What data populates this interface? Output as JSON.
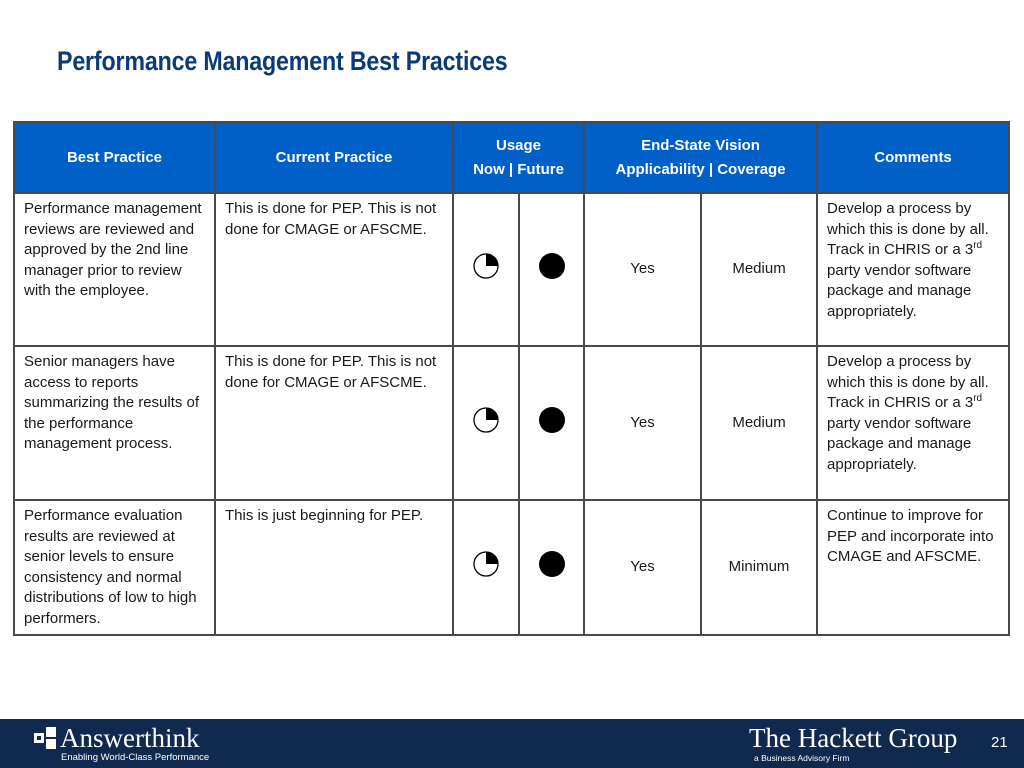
{
  "title": "Performance Management Best Practices",
  "table": {
    "headers": {
      "best_practice": "Best Practice",
      "current_practice": "Current Practice",
      "usage_line1": "Usage",
      "usage_line2": "Now | Future",
      "end_state_line1": "End-State Vision",
      "end_state_line2": "Applicability |  Coverage",
      "comments": "Comments"
    },
    "rows": [
      {
        "best_practice": "Performance management reviews are reviewed and approved by the 2nd line manager prior to review with the employee.",
        "current_practice": "This is done for PEP.  This is not done for CMAGE or AFSCME.",
        "usage_now_icon": "quarter-harvey-ball-icon",
        "usage_now_fill": 0.25,
        "usage_future_icon": "full-harvey-ball-icon",
        "usage_future_fill": 1.0,
        "applicability": "Yes",
        "coverage": "Medium",
        "comments_pre": "Develop a process by which this is done by all.  Track in CHRIS or a 3",
        "comments_sup": "rd",
        "comments_post": " party vendor software package and manage appropriately."
      },
      {
        "best_practice": "Senior managers have access to reports summarizing the results of the performance management process.",
        "current_practice": "This is done for PEP.  This is not done for CMAGE or AFSCME.",
        "usage_now_icon": "quarter-harvey-ball-icon",
        "usage_now_fill": 0.25,
        "usage_future_icon": "full-harvey-ball-icon",
        "usage_future_fill": 1.0,
        "applicability": "Yes",
        "coverage": "Medium",
        "comments_pre": "Develop a process by which this is done by all.  Track in CHRIS or a 3",
        "comments_sup": "rd",
        "comments_post": " party vendor software package and manage appropriately."
      },
      {
        "best_practice": "Performance evaluation results are reviewed at senior levels to ensure consistency and normal distributions of low to high performers.",
        "current_practice": "This is just beginning for PEP.",
        "usage_now_icon": "quarter-harvey-ball-icon",
        "usage_now_fill": 0.25,
        "usage_future_icon": "full-harvey-ball-icon",
        "usage_future_fill": 1.0,
        "applicability": "Yes",
        "coverage": "Minimum",
        "comments": "Continue to improve for PEP and incorporate into CMAGE and AFSCME."
      }
    ]
  },
  "footer": {
    "left_logo_name": "Answerthink",
    "left_logo_tagline": "Enabling World-Class Performance",
    "right_logo_name": "The Hackett Group",
    "right_logo_tagline": "a Business Advisory Firm",
    "page_number": "21",
    "background_color": "#0f2a4e"
  },
  "colors": {
    "title": "#0b3a78",
    "header_background": "#0060c8",
    "header_text": "#ffffff",
    "border": "#4a4a4a"
  }
}
